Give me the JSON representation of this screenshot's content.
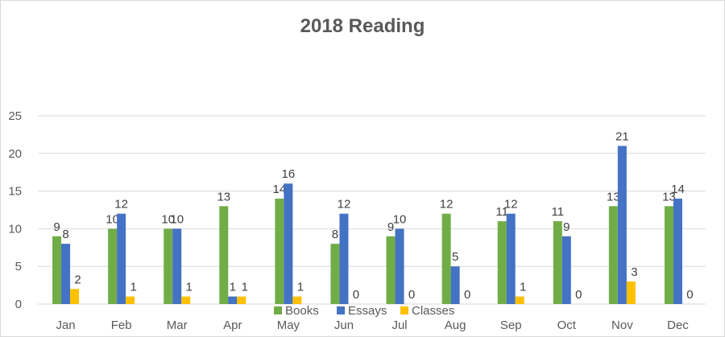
{
  "chart_data": {
    "type": "bar",
    "title": "2018 Reading",
    "xlabel": "",
    "ylabel": "",
    "ylim": [
      0,
      25
    ],
    "yticks": [
      0,
      5,
      10,
      15,
      20,
      25
    ],
    "grid": true,
    "legend_position": "bottom",
    "categories": [
      "Jan",
      "Feb",
      "Mar",
      "Apr",
      "May",
      "Jun",
      "Jul",
      "Aug",
      "Sep",
      "Oct",
      "Nov",
      "Dec"
    ],
    "series": [
      {
        "name": "Books",
        "color": "#70ad47",
        "values": [
          9,
          10,
          10,
          13,
          14,
          8,
          9,
          12,
          11,
          11,
          13,
          13
        ]
      },
      {
        "name": "Essays",
        "color": "#4472c4",
        "values": [
          8,
          12,
          10,
          1,
          16,
          12,
          10,
          5,
          12,
          9,
          21,
          14
        ]
      },
      {
        "name": "Classes",
        "color": "#ffc000",
        "values": [
          2,
          1,
          1,
          1,
          1,
          0,
          0,
          0,
          1,
          0,
          3,
          0
        ]
      }
    ]
  }
}
